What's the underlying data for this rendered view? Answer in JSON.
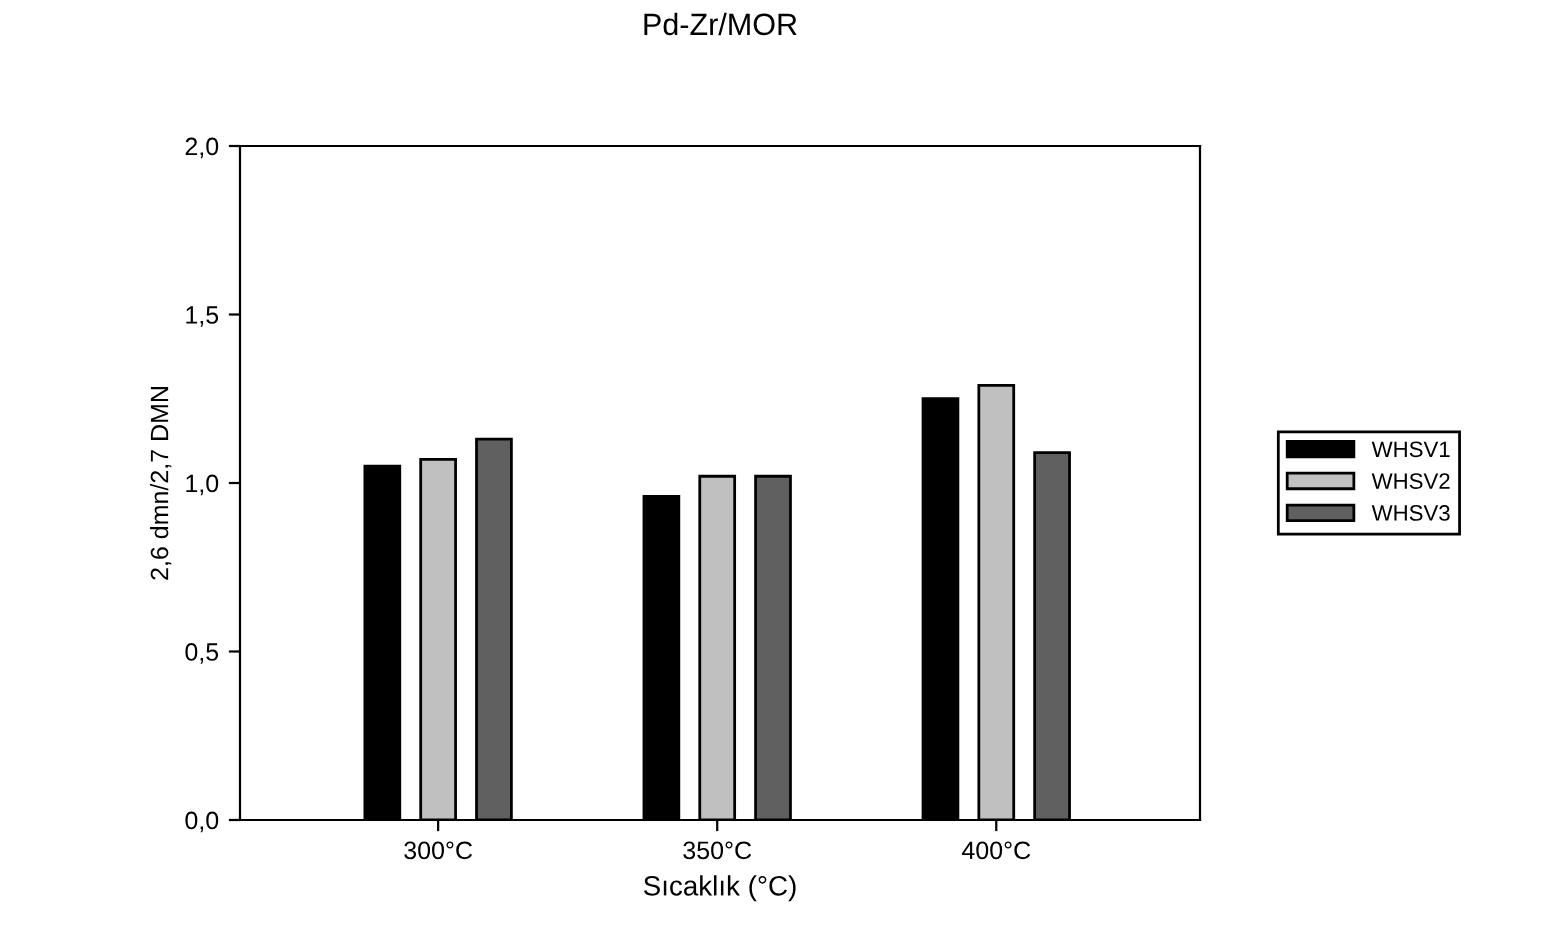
{
  "chart_data": {
    "type": "bar",
    "title": "Pd-Zr/MOR",
    "xlabel": "Sıcaklık (°C)",
    "ylabel": "2,6 dmn/2,7 DMN",
    "categories": [
      "300°C",
      "350°C",
      "400°C"
    ],
    "series": [
      {
        "name": "WHSV1",
        "color": "#000000",
        "values": [
          1.05,
          0.96,
          1.25
        ]
      },
      {
        "name": "WHSV2",
        "color": "#c0c0c0",
        "values": [
          1.07,
          1.02,
          1.29
        ]
      },
      {
        "name": "WHSV3",
        "color": "#606060",
        "values": [
          1.13,
          1.02,
          1.09
        ]
      }
    ],
    "ylim": [
      0,
      2.0
    ],
    "yticks": [
      {
        "value": 0,
        "label": "0,0"
      },
      {
        "value": 0.5,
        "label": "0,5"
      },
      {
        "value": 1.0,
        "label": "1,0"
      },
      {
        "value": 1.5,
        "label": "1,5"
      },
      {
        "value": 2.0,
        "label": "2,0"
      }
    ],
    "grid": false,
    "legend": "right"
  }
}
